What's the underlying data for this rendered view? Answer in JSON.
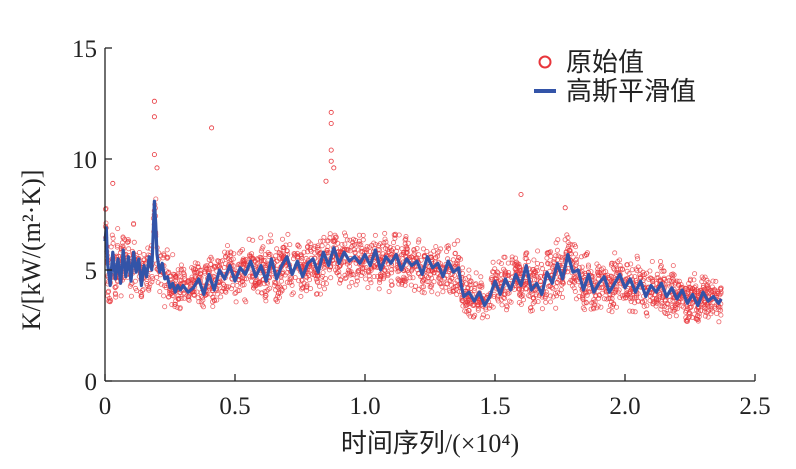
{
  "chart_data": {
    "type": "scatter",
    "xlabel": "时间序列/(×10⁴)",
    "ylabel": "K/[kW/(m²·K)]",
    "xlim": [
      0,
      2.5
    ],
    "ylim": [
      0,
      15
    ],
    "x_ticks": [
      "0",
      "0.5",
      "1.0",
      "1.5",
      "2.0",
      "2.5"
    ],
    "y_ticks": [
      "0",
      "5",
      "10",
      "15"
    ],
    "grid": false,
    "legend_position": "top-right",
    "legend": [
      "原始值",
      "高斯平滑值"
    ],
    "colors": {
      "raw": "#e8353b",
      "smooth": "#3354a8"
    },
    "series": [
      {
        "name": "原始值",
        "style": "open-circle",
        "band_x": [
          0,
          0.05,
          0.1,
          0.15,
          0.19,
          0.22,
          0.3,
          0.4,
          0.5,
          0.6,
          0.7,
          0.8,
          0.9,
          1.0,
          1.1,
          1.2,
          1.3,
          1.36,
          1.4,
          1.45,
          1.5,
          1.6,
          1.7,
          1.8,
          1.9,
          2.0,
          2.1,
          2.2,
          2.3,
          2.37
        ],
        "band_low": [
          3.5,
          3.6,
          3.8,
          3.7,
          4.5,
          3.3,
          3.2,
          3.3,
          3.4,
          3.5,
          3.6,
          3.8,
          3.9,
          4.0,
          3.9,
          3.8,
          3.6,
          3.5,
          2.9,
          2.8,
          3.0,
          3.1,
          3.2,
          3.3,
          3.1,
          3.0,
          2.9,
          2.7,
          2.6,
          2.6
        ],
        "band_high": [
          7.8,
          7.4,
          7.2,
          7.0,
          9.5,
          6.8,
          6.2,
          6.4,
          6.6,
          6.8,
          7.0,
          7.1,
          7.2,
          7.3,
          7.1,
          7.0,
          6.8,
          6.6,
          6.0,
          5.8,
          6.2,
          6.5,
          6.8,
          7.0,
          6.6,
          6.3,
          6.0,
          5.8,
          5.6,
          5.4
        ],
        "outliers": [
          {
            "x": 0.19,
            "y": 12.6
          },
          {
            "x": 0.19,
            "y": 11.9
          },
          {
            "x": 0.19,
            "y": 10.2
          },
          {
            "x": 0.2,
            "y": 9.6
          },
          {
            "x": 0.41,
            "y": 11.4
          },
          {
            "x": 0.87,
            "y": 12.1
          },
          {
            "x": 0.87,
            "y": 11.6
          },
          {
            "x": 0.87,
            "y": 10.4
          },
          {
            "x": 0.87,
            "y": 9.9
          },
          {
            "x": 0.88,
            "y": 9.6
          },
          {
            "x": 0.85,
            "y": 9.0
          },
          {
            "x": 1.6,
            "y": 8.4
          },
          {
            "x": 1.77,
            "y": 7.8
          },
          {
            "x": 0.03,
            "y": 8.9
          }
        ]
      },
      {
        "name": "高斯平滑值",
        "style": "line",
        "x": [
          0,
          0.005,
          0.01,
          0.02,
          0.03,
          0.04,
          0.05,
          0.06,
          0.07,
          0.08,
          0.09,
          0.1,
          0.11,
          0.12,
          0.13,
          0.14,
          0.15,
          0.16,
          0.17,
          0.18,
          0.185,
          0.19,
          0.195,
          0.2,
          0.21,
          0.22,
          0.23,
          0.24,
          0.25,
          0.26,
          0.27,
          0.28,
          0.29,
          0.3,
          0.32,
          0.34,
          0.36,
          0.38,
          0.4,
          0.42,
          0.44,
          0.46,
          0.48,
          0.5,
          0.52,
          0.54,
          0.56,
          0.58,
          0.6,
          0.62,
          0.64,
          0.66,
          0.68,
          0.7,
          0.72,
          0.74,
          0.76,
          0.78,
          0.8,
          0.82,
          0.84,
          0.86,
          0.88,
          0.9,
          0.92,
          0.94,
          0.96,
          0.98,
          1.0,
          1.02,
          1.04,
          1.06,
          1.08,
          1.1,
          1.12,
          1.14,
          1.16,
          1.18,
          1.2,
          1.22,
          1.24,
          1.26,
          1.28,
          1.3,
          1.32,
          1.34,
          1.36,
          1.37,
          1.38,
          1.4,
          1.42,
          1.44,
          1.46,
          1.48,
          1.5,
          1.52,
          1.54,
          1.56,
          1.58,
          1.6,
          1.62,
          1.64,
          1.66,
          1.68,
          1.7,
          1.72,
          1.74,
          1.76,
          1.78,
          1.8,
          1.82,
          1.84,
          1.86,
          1.88,
          1.9,
          1.92,
          1.94,
          1.96,
          1.98,
          2.0,
          2.02,
          2.04,
          2.06,
          2.08,
          2.1,
          2.12,
          2.14,
          2.16,
          2.18,
          2.2,
          2.22,
          2.24,
          2.26,
          2.28,
          2.3,
          2.32,
          2.34,
          2.36,
          2.37
        ],
        "y": [
          6.3,
          6.9,
          5.3,
          4.3,
          5.8,
          4.6,
          5.5,
          4.4,
          5.9,
          4.7,
          5.6,
          4.5,
          5.8,
          4.9,
          5.5,
          4.3,
          5.2,
          4.7,
          5.6,
          5.0,
          6.5,
          8.1,
          7.1,
          5.7,
          4.9,
          5.3,
          4.6,
          4.7,
          4.2,
          4.4,
          4.0,
          4.3,
          4.1,
          4.3,
          4.0,
          4.2,
          4.6,
          3.9,
          4.8,
          4.1,
          5.0,
          4.6,
          5.2,
          4.5,
          5.1,
          4.8,
          5.4,
          4.7,
          5.2,
          4.5,
          5.5,
          4.6,
          5.2,
          5.6,
          4.8,
          5.4,
          4.7,
          5.3,
          5.5,
          4.9,
          5.8,
          5.2,
          6.0,
          5.3,
          5.8,
          5.4,
          5.6,
          5.3,
          5.7,
          5.2,
          5.9,
          5.0,
          5.6,
          5.3,
          5.7,
          5.0,
          5.5,
          5.2,
          5.4,
          4.8,
          5.6,
          5.1,
          5.3,
          4.7,
          5.4,
          4.9,
          5.1,
          4.3,
          3.8,
          4.0,
          3.6,
          4.0,
          3.4,
          3.8,
          4.5,
          3.9,
          4.6,
          4.1,
          4.8,
          4.3,
          5.2,
          4.1,
          4.4,
          3.9,
          4.9,
          4.4,
          5.3,
          4.6,
          5.7,
          4.9,
          5.0,
          4.1,
          4.8,
          4.0,
          4.4,
          4.7,
          4.0,
          4.4,
          4.8,
          4.2,
          4.6,
          4.0,
          4.5,
          3.8,
          4.3,
          4.0,
          4.4,
          3.8,
          4.2,
          3.7,
          4.1,
          3.5,
          3.9,
          3.4,
          4.0,
          3.6,
          3.8,
          3.5,
          3.7
        ]
      }
    ]
  }
}
